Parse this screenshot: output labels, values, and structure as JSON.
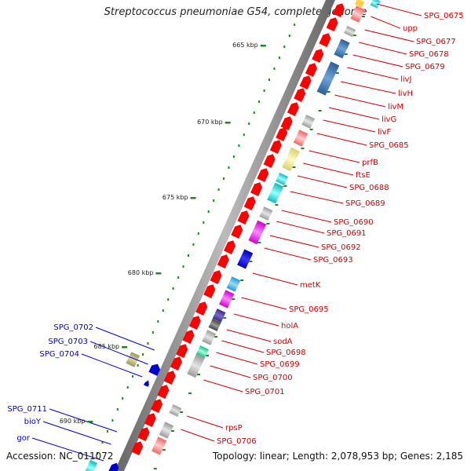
{
  "title": "Streptococcus pneumoniae G54, complete genome",
  "accession": "Accession: NC_011072",
  "topology": "Topology: linear; Length: 2,078,953 bp; Genes: 2,185",
  "colors": {
    "forward_label": "#cc0000",
    "reverse_label": "#0000cc",
    "forward_arrow": "#ff0000",
    "backbone": "#8a8a8a",
    "tick": "#1a8a1a"
  },
  "scale_labels": [
    "665 kbp",
    "670 kbp",
    "675 kbp",
    "680 kbp",
    "685 kbp",
    "690 kbp"
  ],
  "forward_genes": [
    "SPG_0675",
    "upp",
    "SPG_0677",
    "SPG_0678",
    "SPG_0679",
    "livJ",
    "livH",
    "livM",
    "livG",
    "livF",
    "SPG_0685",
    "prfB",
    "ftsE",
    "SPG_0688",
    "SPG_0689",
    "SPG_0690",
    "SPG_0691",
    "SPG_0692",
    "SPG_0693",
    "metK",
    "SPG_0695",
    "holA",
    "sodA",
    "SPG_0698",
    "SPG_0699",
    "SPG_0700",
    "SPG_0701",
    "rpsP",
    "SPG_0706"
  ],
  "reverse_genes": [
    "SPG_0702",
    "SPG_0703",
    "SPG_0704",
    "SPG_0711",
    "bioY",
    "gor"
  ]
}
